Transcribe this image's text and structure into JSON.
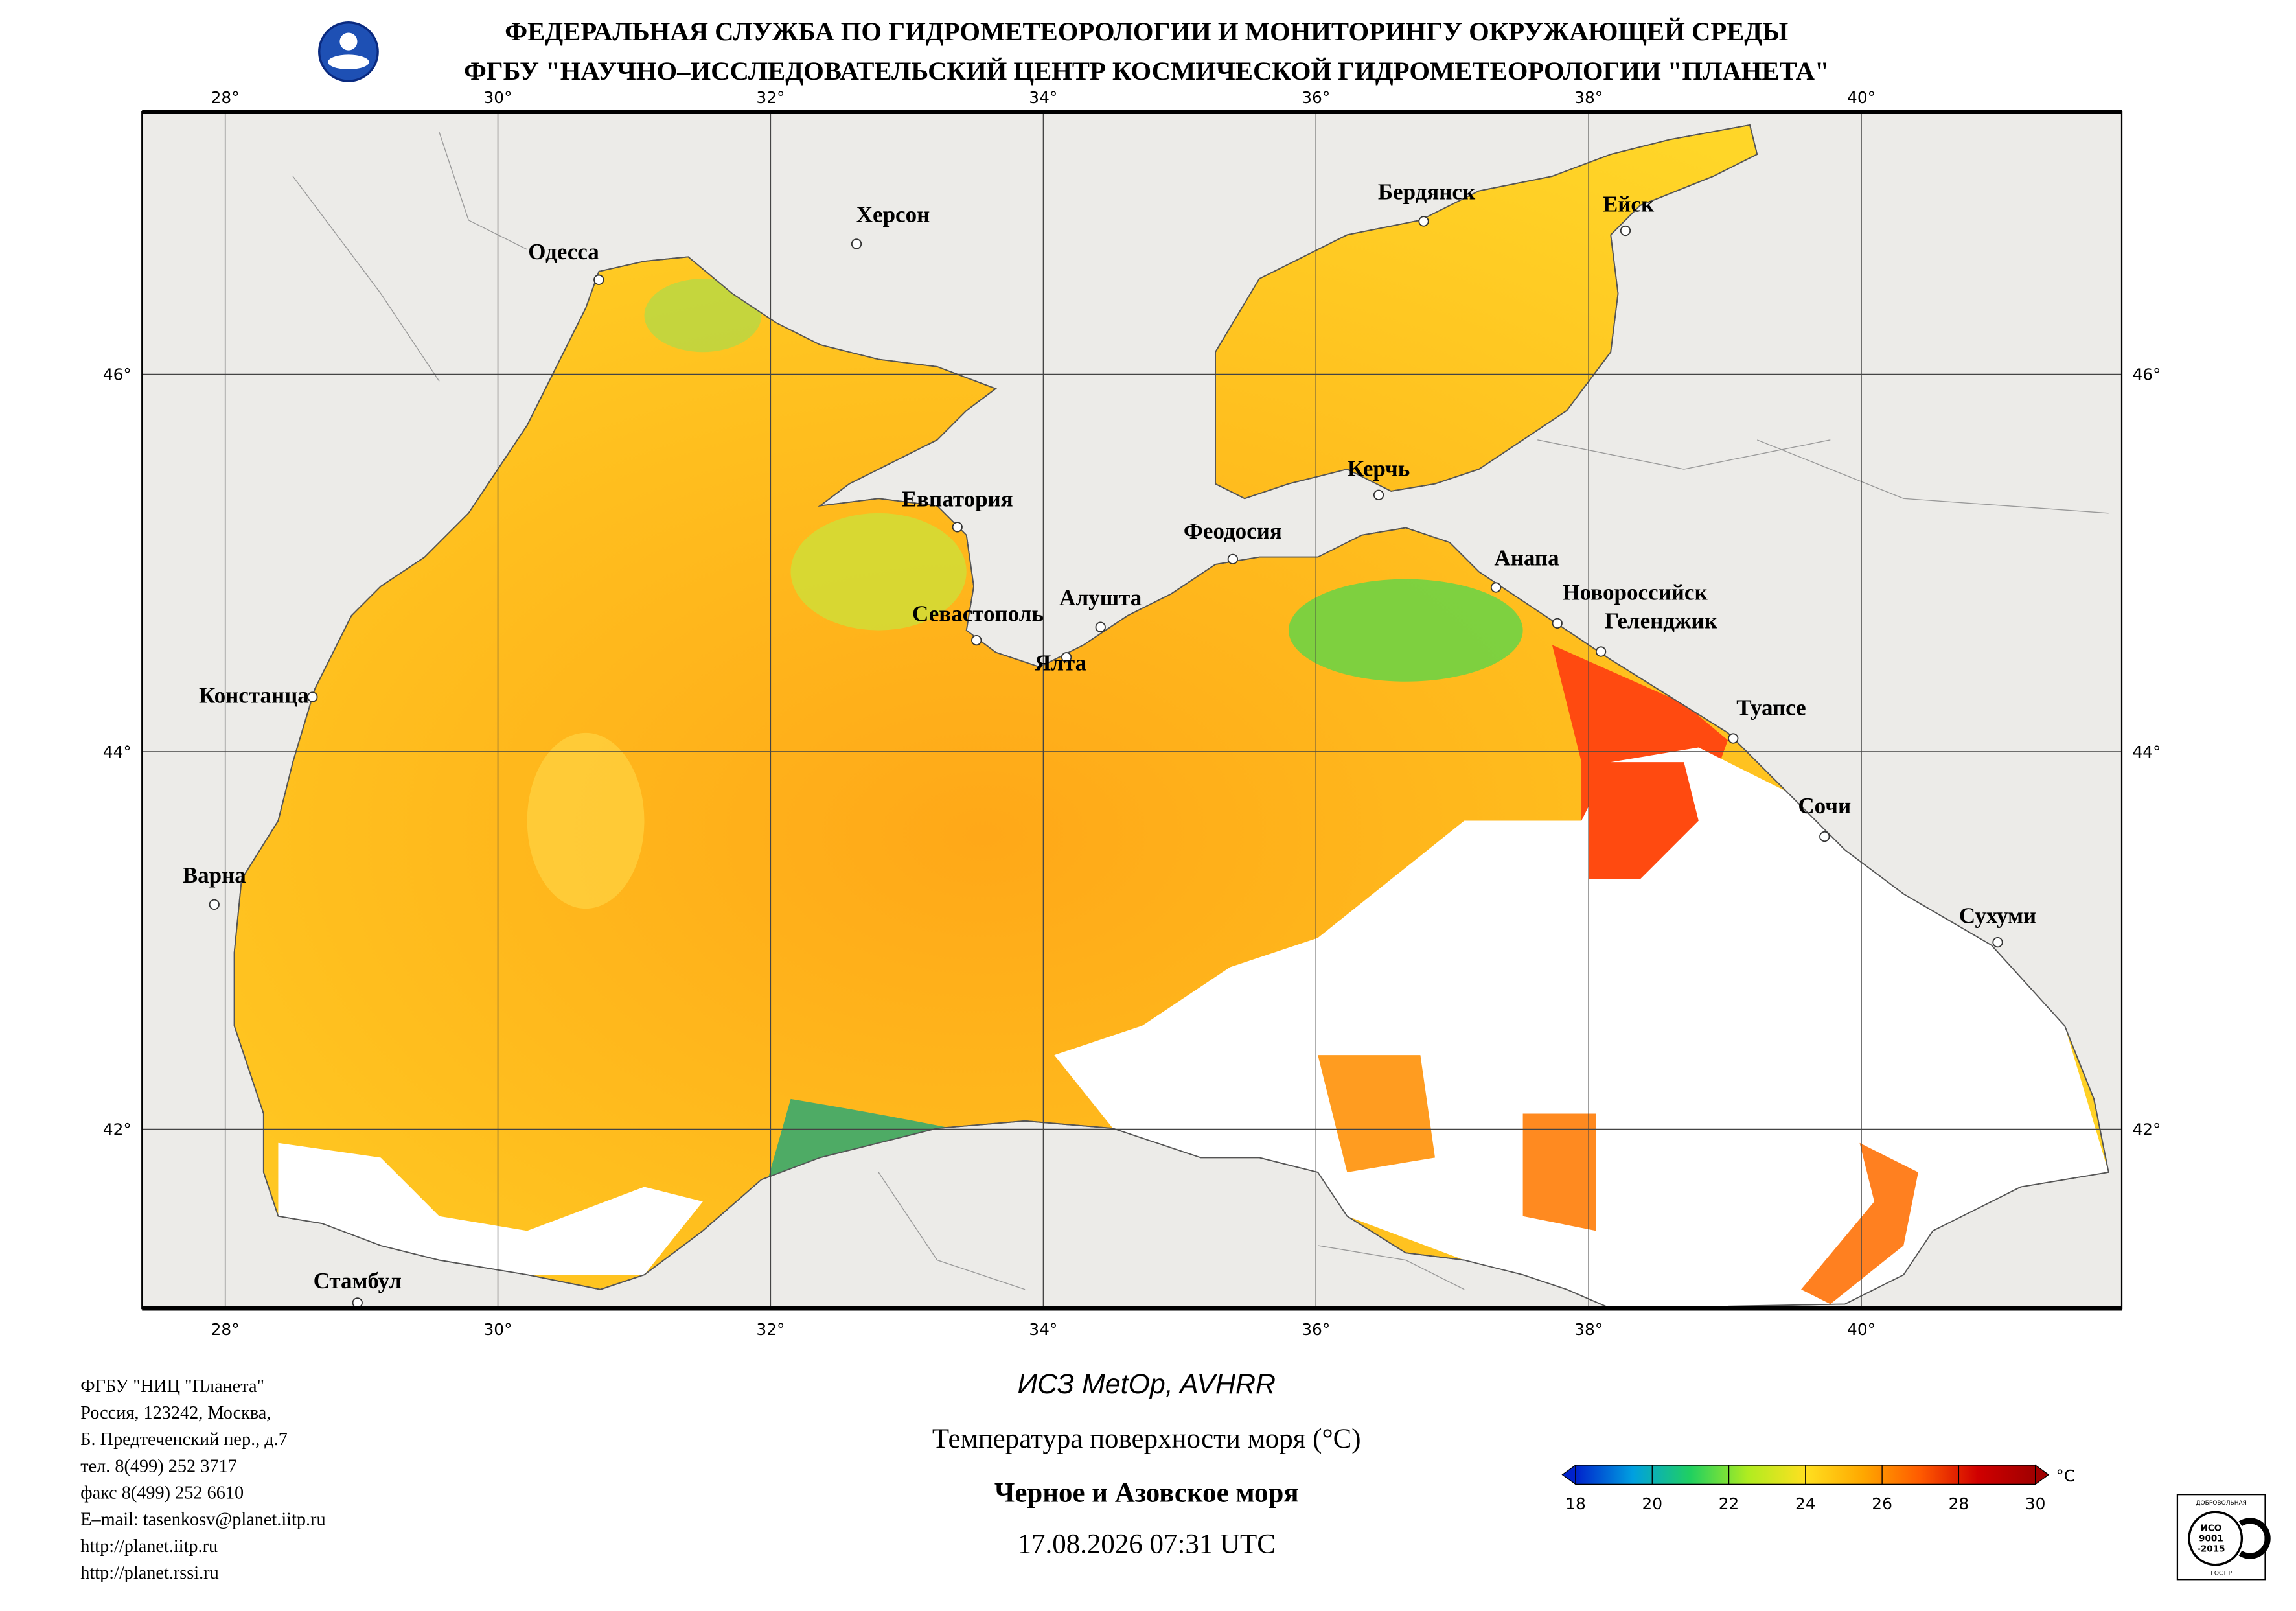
{
  "header": {
    "line1": "ФЕДЕРАЛЬНАЯ СЛУЖБА ПО ГИДРОМЕТЕОРОЛОГИИ И МОНИТОРИНГУ ОКРУЖАЮЩЕЙ СРЕДЫ",
    "line2": "ФГБУ \"НАУЧНО–ИССЛЕДОВАТЕЛЬСКИЙ ЦЕНТР КОСМИЧЕСКОЙ ГИДРОМЕТЕОРОЛОГИИ \"ПЛАНЕТА\""
  },
  "map": {
    "lon_range": [
      27.39,
      41.91
    ],
    "lat_range": [
      41.05,
      47.39
    ],
    "lon_ticks": [
      {
        "value": 28,
        "label": "28°"
      },
      {
        "value": 30,
        "label": "30°"
      },
      {
        "value": 32,
        "label": "32°"
      },
      {
        "value": 34,
        "label": "34°"
      },
      {
        "value": 36,
        "label": "36°"
      },
      {
        "value": 38,
        "label": "38°"
      },
      {
        "value": 40,
        "label": "40°"
      }
    ],
    "lat_ticks": [
      {
        "value": 46,
        "label": "46°"
      },
      {
        "value": 44,
        "label": "44°"
      },
      {
        "value": 42,
        "label": "42°"
      }
    ],
    "cities": [
      {
        "name": "Одесса",
        "lon": 30.74,
        "lat": 46.5
      },
      {
        "name": "Херсон",
        "lon": 32.63,
        "lat": 46.69
      },
      {
        "name": "Бердянск",
        "lon": 36.79,
        "lat": 46.81
      },
      {
        "name": "Ейск",
        "lon": 38.27,
        "lat": 46.76
      },
      {
        "name": "Евпатория",
        "lon": 33.37,
        "lat": 45.19
      },
      {
        "name": "Керчь",
        "lon": 36.46,
        "lat": 45.36
      },
      {
        "name": "Феодосия",
        "lon": 35.39,
        "lat": 45.02
      },
      {
        "name": "Анапа",
        "lon": 37.32,
        "lat": 44.87
      },
      {
        "name": "Новороссийск",
        "lon": 37.77,
        "lat": 44.68
      },
      {
        "name": "Геленджик",
        "lon": 38.09,
        "lat": 44.53
      },
      {
        "name": "Алушта",
        "lon": 34.42,
        "lat": 44.66
      },
      {
        "name": "Севастополь",
        "lon": 33.51,
        "lat": 44.59
      },
      {
        "name": "Ялта",
        "lon": 34.17,
        "lat": 44.5
      },
      {
        "name": "Констанца",
        "lon": 28.64,
        "lat": 44.29
      },
      {
        "name": "Туапсе",
        "lon": 39.06,
        "lat": 44.07
      },
      {
        "name": "Сочи",
        "lon": 39.73,
        "lat": 43.55
      },
      {
        "name": "Варна",
        "lon": 27.92,
        "lat": 43.19
      },
      {
        "name": "Сухуми",
        "lon": 41.0,
        "lat": 42.99
      },
      {
        "name": "Стамбул",
        "lon": 28.97,
        "lat": 41.08
      }
    ]
  },
  "contacts": [
    "ФГБУ \"НИЦ \"Планета\"",
    "Россия, 123242, Москва,",
    "Б. Предтеченский пер., д.7",
    "тел. 8(499) 252 3717",
    "факс 8(499) 252 6610",
    "E–mail: tasenkosv@planet.iitp.ru",
    "http://planet.iitp.ru",
    "http://planet.rssi.ru"
  ],
  "caption": {
    "satellite": "ИСЗ MetOp, AVHRR",
    "parameter": "Температура поверхности моря (°C)",
    "region": "Черное и Азовское моря",
    "datetime": "17.08.2026 07:31 UTC"
  },
  "colorbar": {
    "range": [
      18,
      30
    ],
    "ticks": [
      18,
      20,
      22,
      24,
      26,
      28,
      30
    ],
    "unit": "°C",
    "colors": [
      "#0022cc",
      "#00a0e0",
      "#20d060",
      "#b0ec20",
      "#ffe020",
      "#ffa800",
      "#ff5a00",
      "#d00000",
      "#a00000"
    ]
  },
  "badge": {
    "top": "ДОБРОВОЛЬНАЯ",
    "iso": "ИСО",
    "number": "9001",
    "year": "-2015",
    "bottom": "ГОСТ Р"
  }
}
